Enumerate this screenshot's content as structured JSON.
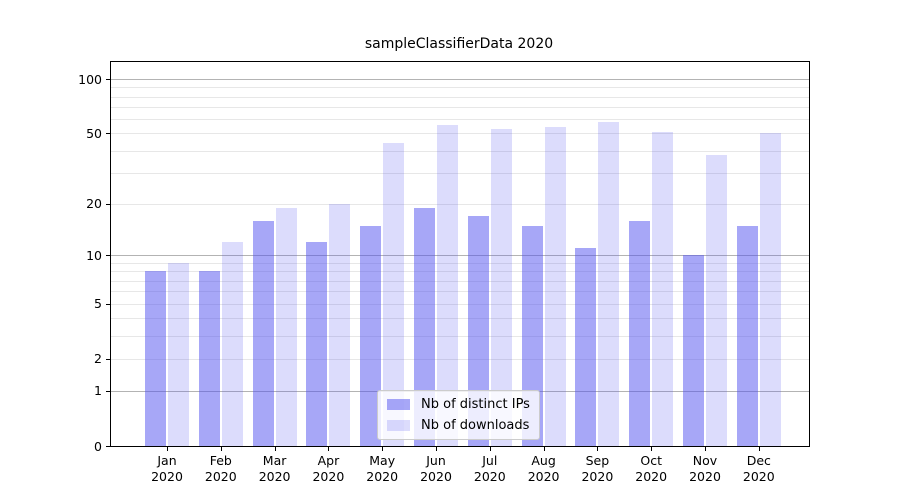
{
  "chart_data": {
    "type": "bar",
    "title": "sampleClassifierData 2020",
    "categories": [
      "Jan",
      "Feb",
      "Mar",
      "Apr",
      "May",
      "Jun",
      "Jul",
      "Aug",
      "Sep",
      "Oct",
      "Nov",
      "Dec"
    ],
    "category_year_line": "2020",
    "series": [
      {
        "name": "Nb of distinct IPs",
        "color": "rgba(80,80,240,0.50)",
        "values": [
          8,
          8,
          16,
          12,
          15,
          19,
          17,
          15,
          11,
          16,
          10,
          15
        ]
      },
      {
        "name": "Nb of downloads",
        "color": "rgba(80,80,240,0.20)",
        "values": [
          9,
          12,
          19,
          20,
          44,
          56,
          53,
          54,
          58,
          51,
          38,
          50
        ]
      }
    ],
    "xlabel": "",
    "ylabel": "",
    "yscale": "log10(1+v)",
    "ylim": [
      0,
      124
    ],
    "y_tick_values": [
      0,
      1,
      2,
      5,
      10,
      20,
      50,
      100
    ],
    "y_major_gridline_values": [
      1,
      10,
      100
    ],
    "y_minor_gridline_values": [
      2,
      3,
      4,
      5,
      6,
      7,
      8,
      9,
      20,
      30,
      40,
      50,
      60,
      70,
      80,
      90
    ],
    "grid": true,
    "legend_position": "lower center"
  },
  "colors": {
    "background": "#ffffff",
    "spine": "#000000",
    "major_grid": "#b3b3b3",
    "minor_grid": "#e7e7e7",
    "bar_base": "#5050f0"
  }
}
